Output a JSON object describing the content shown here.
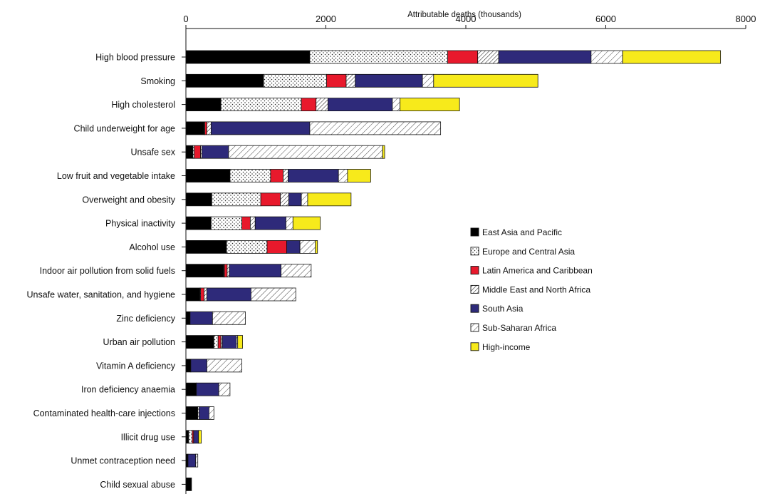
{
  "chart_data": {
    "type": "bar",
    "orientation": "horizontal",
    "stacked": true,
    "xlabel": "Attributable deaths (thousands)",
    "xlim": [
      0,
      8000
    ],
    "xticks": [
      0,
      2000,
      4000,
      6000,
      8000
    ],
    "grid": false,
    "legend_position": "center-right",
    "categories": [
      "High blood pressure",
      "Smoking",
      "High cholesterol",
      "Child underweight for age",
      "Unsafe sex",
      "Low fruit and vegetable intake",
      "Overweight and obesity",
      "Physical inactivity",
      "Alcohol use",
      "Indoor air pollution from solid fuels",
      "Unsafe water, sanitation, and hygiene",
      "Zinc deficiency",
      "Urban air pollution",
      "Vitamin A deficiency",
      "Iron deficiency anaemia",
      "Contaminated health-care injections",
      "Illicit drug use",
      "Unmet contraception need",
      "Child sexual abuse"
    ],
    "series": [
      {
        "name": "East Asia and Pacific",
        "color": "#000000",
        "pattern": "solid",
        "values": [
          1770,
          1110,
          500,
          260,
          100,
          630,
          370,
          360,
          580,
          540,
          200,
          60,
          400,
          70,
          150,
          170,
          40,
          30,
          80
        ]
      },
      {
        "name": "Europe and Central Asia",
        "color": "#ffffff",
        "pattern": "dots",
        "values": [
          1970,
          900,
          1150,
          10,
          20,
          580,
          700,
          440,
          580,
          10,
          10,
          0,
          60,
          0,
          0,
          20,
          50,
          0,
          0
        ]
      },
      {
        "name": "Latin America and Caribbean",
        "color": "#e8192c",
        "pattern": "solid",
        "values": [
          430,
          280,
          210,
          30,
          90,
          180,
          280,
          120,
          280,
          40,
          50,
          0,
          40,
          0,
          0,
          0,
          20,
          0,
          0
        ]
      },
      {
        "name": "Middle East and North Africa",
        "color": "#ffffff",
        "pattern": "dense-hatch",
        "values": [
          300,
          130,
          170,
          60,
          20,
          70,
          120,
          70,
          0,
          30,
          40,
          0,
          20,
          0,
          0,
          0,
          0,
          0,
          0
        ]
      },
      {
        "name": "South Asia",
        "color": "#2e2a7a",
        "pattern": "solid",
        "values": [
          1320,
          960,
          920,
          1410,
          380,
          720,
          180,
          440,
          190,
          740,
          630,
          320,
          200,
          230,
          320,
          140,
          70,
          110,
          0
        ]
      },
      {
        "name": "Sub-Saharan Africa",
        "color": "#ffffff",
        "pattern": "sparse-hatch",
        "values": [
          450,
          160,
          110,
          1870,
          2200,
          130,
          90,
          100,
          220,
          430,
          640,
          470,
          20,
          500,
          160,
          70,
          0,
          30,
          0
        ]
      },
      {
        "name": "High-income",
        "color": "#f7ea1b",
        "pattern": "solid",
        "values": [
          1400,
          1490,
          850,
          0,
          30,
          330,
          620,
          390,
          30,
          0,
          0,
          0,
          70,
          0,
          0,
          0,
          40,
          0,
          0
        ]
      }
    ]
  }
}
